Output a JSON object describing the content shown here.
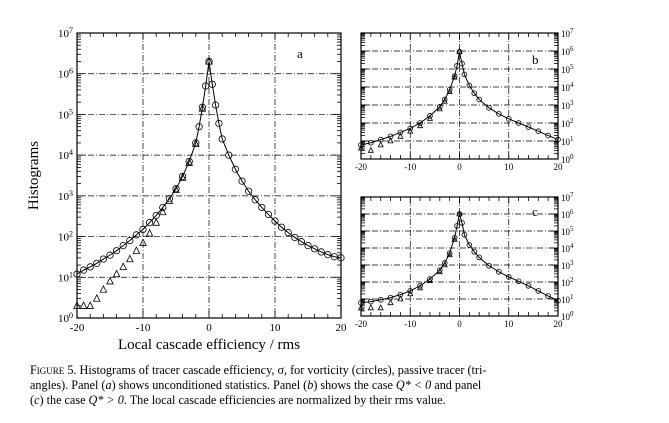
{
  "chart_data": [
    {
      "panel": "a",
      "type": "scatter",
      "xlabel": "Local cascade efficiency / rms",
      "ylabel": "Histograms",
      "xlim": [
        -20,
        20
      ],
      "ylim": [
        1,
        10000000
      ],
      "yscale": "log",
      "grid": "dashed",
      "x_ticks": [
        "-20",
        "-10",
        "0",
        "10",
        "20"
      ],
      "y_ticks": [
        "10^0",
        "10^1",
        "10^2",
        "10^3",
        "10^4",
        "10^5",
        "10^6",
        "10^7"
      ],
      "series": [
        {
          "marker": "circle",
          "line": "solid",
          "x": [
            -20,
            -19,
            -18,
            -17,
            -16,
            -15,
            -14,
            -13,
            -12,
            -11,
            -10,
            -9,
            -8,
            -7,
            -6,
            -5,
            -4,
            -3,
            -2,
            -1.5,
            -1,
            -0.5,
            0,
            0.5,
            1,
            1.5,
            2,
            3,
            4,
            5,
            6,
            7,
            8,
            9,
            10,
            11,
            12,
            13,
            14,
            15,
            16,
            17,
            18,
            19,
            20
          ],
          "y": [
            12,
            15,
            18,
            22,
            28,
            35,
            45,
            60,
            80,
            110,
            150,
            220,
            330,
            520,
            850,
            1500,
            3000,
            7000,
            20000,
            50000,
            150000,
            500000,
            2000000,
            550000,
            170000,
            60000,
            25000,
            10000,
            4500,
            2300,
            1300,
            800,
            520,
            350,
            240,
            170,
            125,
            95,
            75,
            60,
            50,
            42,
            36,
            32,
            30
          ]
        },
        {
          "marker": "triangle",
          "line": "none",
          "x": [
            -20,
            -19,
            -18,
            -17,
            -16,
            -15,
            -14,
            -13,
            -12,
            -11,
            -10,
            -9,
            -8,
            -7,
            -6,
            -5,
            -4,
            -3,
            -2,
            -1,
            0
          ],
          "y": [
            2,
            2,
            2,
            3,
            5,
            8,
            12,
            18,
            28,
            45,
            70,
            120,
            220,
            400,
            750,
            1400,
            2800,
            6500,
            19000,
            140000,
            2000000
          ]
        }
      ]
    },
    {
      "panel": "b",
      "type": "scatter",
      "xlim": [
        -20,
        20
      ],
      "ylim": [
        1,
        10000000
      ],
      "yscale": "log",
      "grid": "dashed",
      "x_ticks": [
        "-20",
        "-10",
        "0",
        "10",
        "20"
      ],
      "y_ticks": [
        "10^0",
        "10^1",
        "10^2",
        "10^3",
        "10^4",
        "10^5",
        "10^6",
        "10^7"
      ],
      "series": [
        {
          "marker": "circle",
          "line": "solid",
          "x": [
            -20,
            -18,
            -16,
            -14,
            -12,
            -10,
            -8,
            -6,
            -4,
            -3,
            -2,
            -1,
            -0.5,
            0,
            0.5,
            1,
            2,
            3,
            4,
            6,
            8,
            10,
            12,
            14,
            16,
            18,
            20
          ],
          "y": [
            6,
            8,
            12,
            18,
            30,
            50,
            100,
            250,
            800,
            2000,
            7000,
            40000,
            150000,
            900000,
            200000,
            50000,
            12000,
            4500,
            2000,
            700,
            320,
            170,
            100,
            60,
            35,
            20,
            12
          ]
        },
        {
          "marker": "triangle",
          "line": "none",
          "x": [
            -20,
            -18,
            -16,
            -14,
            -12,
            -10,
            -8,
            -6,
            -4,
            -3,
            -2,
            -1,
            0
          ],
          "y": [
            4,
            3,
            6,
            10,
            18,
            35,
            70,
            180,
            600,
            1600,
            5500,
            35000,
            900000
          ]
        }
      ]
    },
    {
      "panel": "c",
      "type": "scatter",
      "xlim": [
        -20,
        20
      ],
      "ylim": [
        1,
        10000000
      ],
      "yscale": "log",
      "grid": "dashed",
      "x_ticks": [
        "-20",
        "-10",
        "0",
        "10",
        "20"
      ],
      "y_ticks": [
        "10^0",
        "10^1",
        "10^2",
        "10^3",
        "10^4",
        "10^5",
        "10^6",
        "10^7"
      ],
      "series": [
        {
          "marker": "circle",
          "line": "solid",
          "x": [
            -20,
            -18,
            -16,
            -14,
            -12,
            -10,
            -8,
            -6,
            -4,
            -3,
            -2,
            -1,
            -0.5,
            0,
            0.5,
            1,
            2,
            3,
            4,
            6,
            8,
            10,
            12,
            14,
            16,
            18,
            20
          ],
          "y": [
            6,
            7,
            9,
            12,
            18,
            30,
            60,
            150,
            500,
            1300,
            5000,
            40000,
            200000,
            1000000,
            300000,
            60000,
            15000,
            6000,
            2800,
            900,
            400,
            200,
            110,
            60,
            30,
            15,
            8
          ]
        },
        {
          "marker": "triangle",
          "line": "none",
          "x": [
            -20,
            -18,
            -16,
            -14,
            -12,
            -10,
            -8,
            -6,
            -4,
            -3,
            -2,
            -1,
            0
          ],
          "y": [
            3,
            3,
            3,
            6,
            10,
            20,
            45,
            120,
            400,
            1000,
            4000,
            32000,
            1000000
          ]
        }
      ]
    }
  ],
  "caption": {
    "figure_label": "Figure 5.",
    "line1": "Histograms of tracer cascade efficiency, σ, for vorticity (circles), passive tracer (tri-",
    "line2a": "angles). Panel (",
    "line2_a": "a",
    "line2b": ") shows unconditioned statistics. Panel (",
    "line2_b": "b",
    "line2c": ") shows the case ",
    "line2_cond1": "Q* < 0",
    "line2d": " and panel",
    "line3a": "(",
    "line3_c": "c",
    "line3b": ") the case ",
    "line3_cond2": "Q* > 0",
    "line3c": ". The local cascade efficiencies are normalized by their rms value."
  }
}
